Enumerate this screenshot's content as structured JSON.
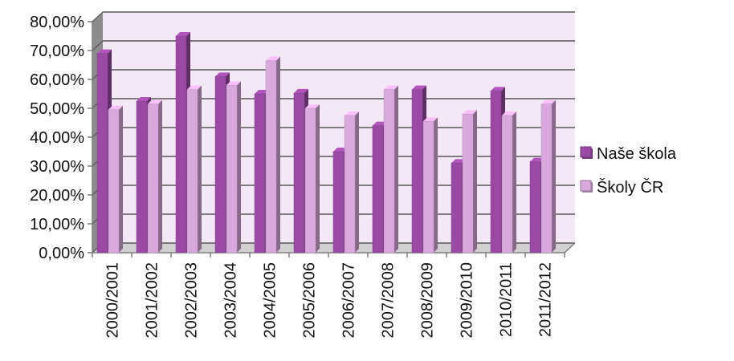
{
  "chart_data": {
    "type": "bar",
    "title": "",
    "xlabel": "",
    "ylabel": "",
    "categories": [
      "2000/2001",
      "2001/2002",
      "2002/2003",
      "2003/2004",
      "2004/2005",
      "2005/2006",
      "2006/2007",
      "2007/2008",
      "2008/2009",
      "2009/2010",
      "2010/2011",
      "2011/2012"
    ],
    "series": [
      {
        "name": "Naše škola",
        "color": "#9a4aa4",
        "values": [
          0.69,
          0.525,
          0.75,
          0.61,
          0.55,
          0.553,
          0.35,
          0.44,
          0.565,
          0.31,
          0.56,
          0.315
        ]
      },
      {
        "name": "Školy ČR",
        "color": "#d9a8dd",
        "values": [
          0.495,
          0.515,
          0.565,
          0.58,
          0.665,
          0.5,
          0.475,
          0.565,
          0.455,
          0.48,
          0.475,
          0.515
        ]
      }
    ],
    "ylim": [
      0,
      0.8
    ],
    "ytick_labels": [
      "0,00%",
      "10,00%",
      "20,00%",
      "30,00%",
      "40,00%",
      "50,00%",
      "60,00%",
      "70,00%",
      "80,00%"
    ],
    "grid": true,
    "legend_position": "right",
    "plot_background": "#f3e8f5",
    "gridline_color": "#595959"
  }
}
